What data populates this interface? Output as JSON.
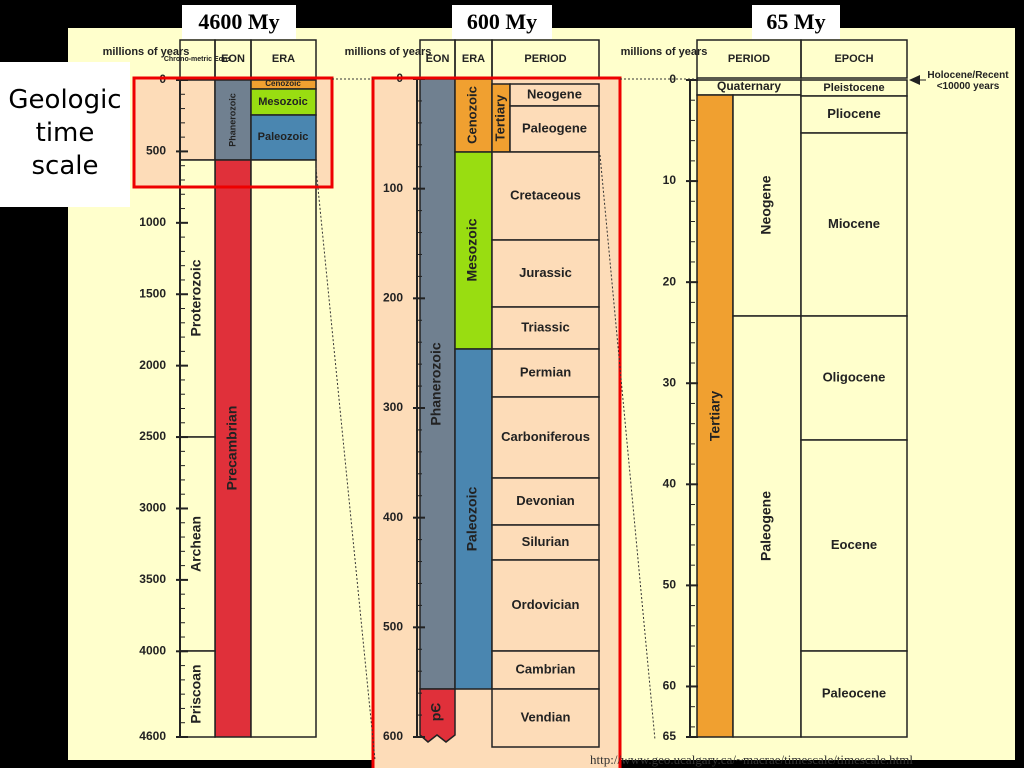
{
  "header": {
    "title": "Geologic time scale",
    "spans": [
      "4600 My",
      "600 My",
      "65 My"
    ]
  },
  "panel1": {
    "axis_title": "millions of years",
    "columns": [
      "Chrono-metric Eons",
      "EON",
      "ERA"
    ],
    "ticks": [
      0,
      500,
      1000,
      1500,
      2000,
      2500,
      3000,
      3500,
      4000,
      4600
    ],
    "chrono_eons": [
      "Proterozoic",
      "Archean",
      "Priscoan"
    ],
    "eons": [
      "Phanerozoic",
      "Precambrian"
    ],
    "eras": [
      "Cenozoic",
      "Mesozoic",
      "Paleozoic"
    ]
  },
  "panel2": {
    "axis_title": "millions of years",
    "columns": [
      "EON",
      "ERA",
      "PERIOD"
    ],
    "ticks": [
      0,
      100,
      200,
      300,
      400,
      500,
      600
    ],
    "eons": [
      "Phanerozoic",
      "pЄ"
    ],
    "eras": [
      "Cenozoic",
      "Mesozoic",
      "Paleozoic"
    ],
    "subperiod": "Tertiary",
    "periods": [
      "Neogene",
      "Paleogene",
      "Cretaceous",
      "Jurassic",
      "Triassic",
      "Permian",
      "Carboniferous",
      "Devonian",
      "Silurian",
      "Ordovician",
      "Cambrian",
      "Vendian"
    ]
  },
  "panel3": {
    "axis_title": "millions of years",
    "columns": [
      "PERIOD",
      "EPOCH"
    ],
    "ticks": [
      0,
      10,
      20,
      30,
      40,
      50,
      60,
      65
    ],
    "periods": [
      "Quaternary",
      "Tertiary"
    ],
    "subperiods": [
      "Neogene",
      "Paleogene"
    ],
    "epochs": [
      "Pleistocene",
      "Pliocene",
      "Miocene",
      "Oligocene",
      "Eocene",
      "Paleocene"
    ],
    "note": "Holocene/Recent <10000 years"
  },
  "source": "http://www.geo.ucalgary.ca/~macrae/timescale/timescale.html"
}
